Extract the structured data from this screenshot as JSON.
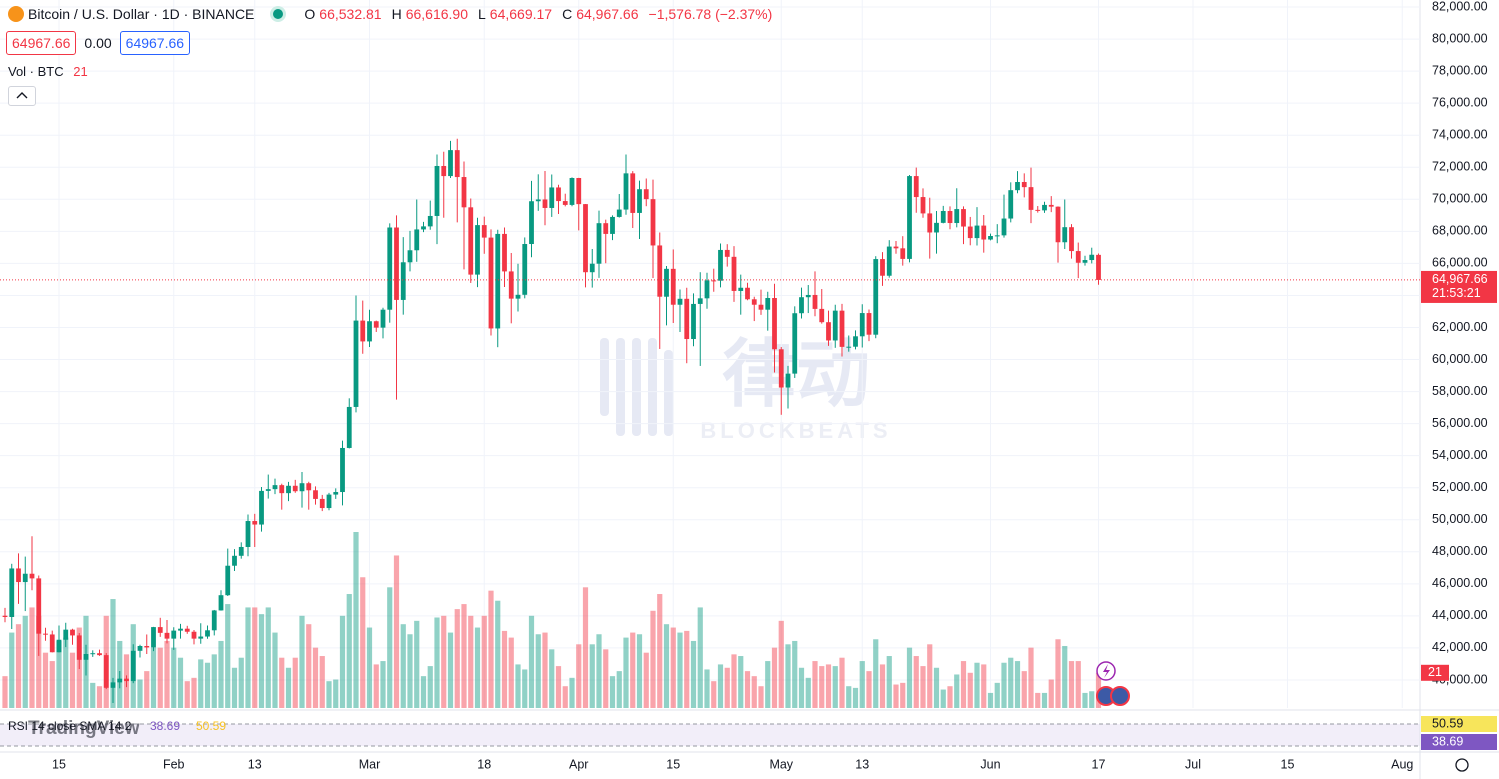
{
  "header": {
    "symbol": "Bitcoin / U.S. Dollar · 1D · BINANCE",
    "o_label": "O",
    "o": "66,532.81",
    "h_label": "H",
    "h": "66,616.90",
    "l_label": "L",
    "l": "64,669.17",
    "c_label": "C",
    "c": "64,967.66",
    "change": "−1,576.78 (−2.37%)",
    "spread": "0.00",
    "volume_legend": "Vol · BTC"
  },
  "watermark": {
    "cn": "律动",
    "en": "BLOCKBEATS",
    "logo": "TradingView"
  },
  "rsi": {
    "label": "RSI 14 close SMA 14 2",
    "rsi_value": "38.69",
    "sma_value": "50.59"
  },
  "chart_data": {
    "type": "candlestick",
    "up_color": "#089981",
    "down_color": "#f23645",
    "volume_up_color": "rgba(8,153,129,0.45)",
    "volume_down_color": "rgba(242,54,69,0.45)",
    "last_price_label": "64,967.66",
    "countdown": "21:53:21",
    "grid": true,
    "x": [
      "Jan 7",
      "Jan 8",
      "Jan 9",
      "Jan 10",
      "Jan 11",
      "Jan 12",
      "Jan 13",
      "Jan 14",
      "Jan 15",
      "Jan 16",
      "Jan 17",
      "Jan 18",
      "Jan 19",
      "Jan 20",
      "Jan 21",
      "Jan 22",
      "Jan 23",
      "Jan 24",
      "Jan 25",
      "Jan 26",
      "Jan 27",
      "Jan 28",
      "Jan 29",
      "Jan 30",
      "Jan 31",
      "Feb 1",
      "Feb 2",
      "Feb 3",
      "Feb 4",
      "Feb 5",
      "Feb 6",
      "Feb 7",
      "Feb 8",
      "Feb 9",
      "Feb 10",
      "Feb 11",
      "Feb 12",
      "Feb 13",
      "Feb 14",
      "Feb 15",
      "Feb 16",
      "Feb 17",
      "Feb 18",
      "Feb 19",
      "Feb 20",
      "Feb 21",
      "Feb 22",
      "Feb 23",
      "Feb 24",
      "Feb 25",
      "Feb 26",
      "Feb 27",
      "Feb 28",
      "Feb 29",
      "Mar 1",
      "Mar 2",
      "Mar 3",
      "Mar 4",
      "Mar 5",
      "Mar 6",
      "Mar 7",
      "Mar 8",
      "Mar 9",
      "Mar 10",
      "Mar 11",
      "Mar 12",
      "Mar 13",
      "Mar 14",
      "Mar 15",
      "Mar 16",
      "Mar 17",
      "Mar 18",
      "Mar 19",
      "Mar 20",
      "Mar 21",
      "Mar 22",
      "Mar 23",
      "Mar 24",
      "Mar 25",
      "Mar 26",
      "Mar 27",
      "Mar 28",
      "Mar 29",
      "Mar 30",
      "Mar 31",
      "Apr 1",
      "Apr 2",
      "Apr 3",
      "Apr 4",
      "Apr 5",
      "Apr 6",
      "Apr 7",
      "Apr 8",
      "Apr 9",
      "Apr 10",
      "Apr 11",
      "Apr 12",
      "Apr 13",
      "Apr 14",
      "Apr 15",
      "Apr 16",
      "Apr 17",
      "Apr 18",
      "Apr 19",
      "Apr 20",
      "Apr 21",
      "Apr 22",
      "Apr 23",
      "Apr 24",
      "Apr 25",
      "Apr 26",
      "Apr 27",
      "Apr 28",
      "Apr 29",
      "Apr 30",
      "May 1",
      "May 2",
      "May 3",
      "May 4",
      "May 5",
      "May 6",
      "May 7",
      "May 8",
      "May 9",
      "May 10",
      "May 11",
      "May 12",
      "May 13",
      "May 14",
      "May 15",
      "May 16",
      "May 17",
      "May 18",
      "May 19",
      "May 20",
      "May 21",
      "May 22",
      "May 23",
      "May 24",
      "May 25",
      "May 26",
      "May 27",
      "May 28",
      "May 29",
      "May 30",
      "May 31",
      "Jun 1",
      "Jun 2",
      "Jun 3",
      "Jun 4",
      "Jun 5",
      "Jun 6",
      "Jun 7",
      "Jun 8",
      "Jun 9",
      "Jun 10",
      "Jun 11",
      "Jun 12",
      "Jun 13",
      "Jun 14",
      "Jun 15",
      "Jun 16",
      "Jun 17"
    ],
    "open": [
      44010,
      43930,
      46960,
      46110,
      46630,
      46340,
      42890,
      42840,
      41730,
      42510,
      43140,
      42780,
      41260,
      41620,
      41670,
      41550,
      39510,
      39850,
      40080,
      39930,
      41820,
      42120,
      42030,
      43300,
      42940,
      42580,
      43080,
      43200,
      43010,
      42580,
      42710,
      43100,
      44340,
      45290,
      47130,
      47750,
      48300,
      49920,
      49700,
      51800,
      51910,
      52160,
      51660,
      52120,
      51780,
      52280,
      51840,
      51300,
      50730,
      51570,
      51730,
      54480,
      57040,
      62430,
      61130,
      62390,
      61990,
      63110,
      68240,
      63720,
      66070,
      66820,
      68120,
      68310,
      68960,
      72080,
      71450,
      73070,
      71390,
      69500,
      65300,
      68390,
      67610,
      61940,
      67840,
      65500,
      63800,
      64040,
      67210,
      69880,
      69990,
      69460,
      70740,
      69890,
      69650,
      71330,
      69700,
      65450,
      65980,
      68510,
      67840,
      68900,
      69360,
      71620,
      69150,
      70630,
      70010,
      67120,
      63920,
      65660,
      63420,
      63790,
      61280,
      63470,
      63820,
      64940,
      64920,
      66840,
      66410,
      64280,
      64480,
      63760,
      63420,
      63110,
      63840,
      60640,
      58250,
      59120,
      62890,
      63890,
      64030,
      63160,
      62330,
      61190,
      63050,
      60790,
      60800,
      61450,
      62900,
      61550,
      66270,
      65230,
      67050,
      66940,
      66280,
      71450,
      70140,
      69120,
      67930,
      68530,
      69270,
      68520,
      69390,
      68300,
      67580,
      68360,
      67490,
      67710,
      67750,
      68800,
      70570,
      71080,
      70760,
      69340,
      69310,
      69650,
      69540,
      67320,
      68260,
      66770,
      66040,
      66210,
      66532.81
    ],
    "high": [
      44500,
      47250,
      47900,
      47700,
      48970,
      46520,
      43260,
      43080,
      43400,
      43570,
      43200,
      42930,
      42200,
      41850,
      41890,
      41680,
      40130,
      40560,
      40290,
      42230,
      42200,
      42840,
      43310,
      43880,
      43740,
      43290,
      43500,
      43380,
      43120,
      43540,
      43400,
      44370,
      45600,
      48200,
      48170,
      48590,
      50330,
      50370,
      52040,
      52820,
      52570,
      52250,
      52360,
      52490,
      52980,
      52370,
      52080,
      51550,
      51680,
      51960,
      54940,
      57580,
      64000,
      63680,
      63110,
      62430,
      63230,
      68500,
      69000,
      67640,
      68030,
      69990,
      68590,
      69920,
      72800,
      72970,
      73650,
      73780,
      72360,
      70050,
      68850,
      68920,
      68120,
      68100,
      68240,
      66650,
      65980,
      67620,
      71150,
      71560,
      71770,
      71550,
      70910,
      70350,
      71370,
      71340,
      69710,
      66900,
      69290,
      68730,
      69000,
      70330,
      72800,
      71760,
      71170,
      71300,
      71230,
      67930,
      65840,
      66870,
      64370,
      64480,
      64130,
      65450,
      65420,
      65670,
      67240,
      67200,
      67080,
      65300,
      64790,
      63920,
      64360,
      64230,
      64730,
      60780,
      59600,
      63320,
      64490,
      64650,
      65500,
      64400,
      63050,
      63420,
      63470,
      61500,
      61820,
      63450,
      63120,
      66450,
      66700,
      67450,
      67400,
      67700,
      71520,
      71980,
      70680,
      70100,
      69270,
      69590,
      69560,
      70690,
      69560,
      68900,
      69510,
      69020,
      67860,
      68450,
      70290,
      71060,
      71760,
      71620,
      71980,
      69580,
      69850,
      70200,
      69560,
      69990,
      68450,
      67300,
      66480,
      66980,
      66616.9
    ],
    "low": [
      43600,
      43180,
      44750,
      44300,
      45600,
      41500,
      42450,
      41720,
      41720,
      42050,
      42200,
      40680,
      40280,
      41440,
      41500,
      39430,
      38560,
      39480,
      39550,
      39800,
      41400,
      41620,
      41800,
      42690,
      42280,
      41880,
      42580,
      42880,
      42220,
      42260,
      42570,
      42780,
      44330,
      45240,
      46800,
      47570,
      47720,
      48300,
      49260,
      51320,
      51600,
      50630,
      51160,
      51680,
      50760,
      50630,
      50940,
      50540,
      50590,
      51300,
      50900,
      54450,
      56700,
      60360,
      60780,
      61720,
      61320,
      62300,
      57500,
      62800,
      65500,
      66100,
      67950,
      68100,
      67200,
      68850,
      71330,
      68560,
      65630,
      64780,
      64520,
      66600,
      61500,
      60770,
      64530,
      62260,
      63000,
      63820,
      66380,
      69280,
      68380,
      68900,
      69080,
      69560,
      69570,
      68060,
      64500,
      64490,
      65100,
      66010,
      67450,
      68860,
      69040,
      68210,
      67520,
      69570,
      65090,
      60660,
      62130,
      62280,
      61720,
      59770,
      60830,
      59600,
      63170,
      64230,
      64500,
      65800,
      63600,
      62800,
      63700,
      62400,
      62790,
      61800,
      59190,
      56550,
      56940,
      58850,
      62560,
      62900,
      62700,
      62240,
      60850,
      60730,
      60190,
      60490,
      60630,
      60750,
      61150,
      61330,
      64600,
      65110,
      66600,
      65860,
      66060,
      69160,
      68850,
      66300,
      66610,
      68500,
      68130,
      68250,
      67200,
      67130,
      67120,
      66670,
      67440,
      67260,
      67610,
      68560,
      70380,
      70120,
      68510,
      69170,
      69150,
      69200,
      66050,
      66900,
      66300,
      65080,
      65860,
      66000,
      64669.17
    ],
    "close": [
      43930,
      46960,
      46110,
      46630,
      46340,
      42890,
      42840,
      41730,
      42510,
      43140,
      42780,
      41260,
      41620,
      41670,
      41550,
      39510,
      39850,
      40080,
      39930,
      41820,
      42120,
      42030,
      43300,
      42940,
      42580,
      43080,
      43200,
      43010,
      42580,
      42710,
      43100,
      44340,
      45290,
      47130,
      47750,
      48300,
      49920,
      49700,
      51800,
      51910,
      52160,
      51660,
      52120,
      51780,
      52280,
      51840,
      51300,
      50730,
      51570,
      51730,
      54480,
      57040,
      62430,
      61130,
      62390,
      61990,
      63110,
      68240,
      63720,
      66070,
      66820,
      68120,
      68310,
      68960,
      72080,
      71450,
      73070,
      71390,
      69500,
      65300,
      68390,
      67610,
      61940,
      67840,
      65500,
      63800,
      64040,
      67210,
      69880,
      69990,
      69460,
      70740,
      69890,
      69650,
      71330,
      69700,
      65450,
      65980,
      68510,
      67840,
      68900,
      69360,
      71620,
      69150,
      70630,
      70010,
      67120,
      63920,
      65660,
      63420,
      63790,
      61280,
      63470,
      63820,
      64940,
      64920,
      66840,
      66410,
      64280,
      64480,
      63760,
      63420,
      63110,
      63840,
      60640,
      58250,
      59120,
      62890,
      63890,
      64030,
      63160,
      62330,
      61190,
      63050,
      60790,
      60800,
      61450,
      62900,
      61550,
      66270,
      65230,
      67050,
      66940,
      66280,
      71450,
      70140,
      69120,
      67930,
      68530,
      69270,
      68520,
      69390,
      68300,
      67580,
      68360,
      67490,
      67710,
      67750,
      68800,
      70570,
      71080,
      70760,
      69340,
      69310,
      69650,
      69540,
      67320,
      68260,
      66770,
      66040,
      66210,
      66540,
      64967.66
    ],
    "volume": [
      19,
      45,
      50,
      55,
      60,
      55,
      33,
      28,
      40,
      42,
      33,
      48,
      55,
      15,
      13,
      55,
      65,
      40,
      32,
      50,
      17,
      22,
      36,
      36,
      40,
      36,
      30,
      16,
      18,
      29,
      27,
      32,
      40,
      62,
      24,
      30,
      60,
      60,
      56,
      60,
      45,
      30,
      24,
      30,
      55,
      50,
      36,
      31,
      16,
      17,
      55,
      68,
      105,
      78,
      48,
      26,
      28,
      72,
      91,
      50,
      44,
      52,
      19,
      25,
      54,
      55,
      45,
      59,
      62,
      55,
      48,
      55,
      70,
      64,
      46,
      42,
      26,
      23,
      55,
      44,
      45,
      35,
      25,
      13,
      18,
      38,
      72,
      38,
      44,
      35,
      19,
      22,
      42,
      45,
      44,
      33,
      58,
      68,
      50,
      48,
      45,
      46,
      40,
      60,
      23,
      16,
      26,
      24,
      32,
      31,
      22,
      19,
      13,
      28,
      36,
      52,
      38,
      40,
      24,
      18,
      28,
      25,
      26,
      25,
      30,
      13,
      12,
      28,
      22,
      41,
      26,
      31,
      14,
      15,
      36,
      31,
      25,
      38,
      24,
      11,
      13,
      20,
      28,
      21,
      27,
      26,
      9,
      15,
      27,
      30,
      28,
      22,
      36,
      9,
      9,
      17,
      41,
      37,
      28,
      28,
      9,
      10,
      21
    ],
    "ylim": [
      38250,
      82440
    ],
    "yticks": [
      {
        "value": 40000,
        "label": "40,000.00"
      },
      {
        "value": 42000,
        "label": "42,000.00"
      },
      {
        "value": 44000,
        "label": "44,000.00"
      },
      {
        "value": 46000,
        "label": "46,000.00"
      },
      {
        "value": 48000,
        "label": "48,000.00"
      },
      {
        "value": 50000,
        "label": "50,000.00"
      },
      {
        "value": 52000,
        "label": "52,000.00"
      },
      {
        "value": 54000,
        "label": "54,000.00"
      },
      {
        "value": 56000,
        "label": "56,000.00"
      },
      {
        "value": 58000,
        "label": "58,000.00"
      },
      {
        "value": 60000,
        "label": "60,000.00"
      },
      {
        "value": 62000,
        "label": "62,000.00"
      },
      {
        "value": 64000,
        "label": "64,000.00"
      },
      {
        "value": 66000,
        "label": "66,000.00"
      },
      {
        "value": 68000,
        "label": "68,000.00"
      },
      {
        "value": 70000,
        "label": "70,000.00"
      },
      {
        "value": 72000,
        "label": "72,000.00"
      },
      {
        "value": 74000,
        "label": "74,000.00"
      },
      {
        "value": 76000,
        "label": "76,000.00"
      },
      {
        "value": 78000,
        "label": "78,000.00"
      },
      {
        "value": 80000,
        "label": "80,000.00"
      },
      {
        "value": 82000,
        "label": "82,000.00"
      }
    ],
    "xticks": [
      {
        "value": "Jan 15",
        "label": "15"
      },
      {
        "value": "Feb 1",
        "label": "Feb"
      },
      {
        "value": "Feb 13",
        "label": "13"
      },
      {
        "value": "Mar 1",
        "label": "Mar"
      },
      {
        "value": "Mar 18",
        "label": "18"
      },
      {
        "value": "Apr 1",
        "label": "Apr"
      },
      {
        "value": "Apr 15",
        "label": "15"
      },
      {
        "value": "May 1",
        "label": "May"
      },
      {
        "value": "May 13",
        "label": "13"
      },
      {
        "value": "Jun 1",
        "label": "Jun"
      },
      {
        "value": "Jun 17",
        "label": "17"
      },
      {
        "value": "Jul 1",
        "label": "Jul"
      },
      {
        "value": "Jul 15",
        "label": "15"
      },
      {
        "value": "Aug 1",
        "label": "Aug"
      }
    ]
  }
}
